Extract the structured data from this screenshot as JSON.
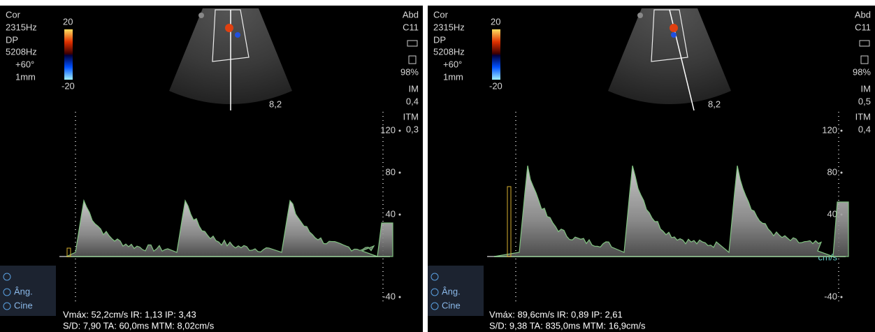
{
  "panels": [
    {
      "mode": "Cor",
      "freq": "2315Hz",
      "dp": "DP",
      "prf": "5208Hz",
      "angle": "+60°",
      "gate": "1mm",
      "color_max": "20",
      "color_min": "-20",
      "preset": "Abd",
      "probe": "C11",
      "power": "98%",
      "im_label": "IM",
      "im": "0,4",
      "itm_label": "ITM",
      "itm": "0,3",
      "depth": "8,2",
      "scale": [
        "120",
        "80",
        "40",
        "-40"
      ],
      "menu": [
        "Âng.",
        "Cine"
      ],
      "results": [
        "Vmáx: 52,2cm/s IR: 1,13 IP: 3,43",
        "S/D: 7,90 TA: 60,0ms MTM: 8,02cm/s"
      ]
    },
    {
      "mode": "Cor",
      "freq": "2315Hz",
      "dp": "DP",
      "prf": "5208Hz",
      "angle": "+60°",
      "gate": "1mm",
      "color_max": "20",
      "color_min": "-20",
      "preset": "Abd",
      "probe": "C11",
      "power": "98%",
      "im_label": "IM",
      "im": "0,5",
      "itm_label": "ITM",
      "itm": "0,4",
      "depth": "8,2",
      "scale": [
        "120",
        "80",
        "40",
        "-40"
      ],
      "menu": [
        "Âng.",
        "Cine"
      ],
      "unit": "cm/s",
      "results": [
        "Vmáx: 89,6cm/s IR: 0,89 IP: 2,61",
        "S/D: 9,38 TA: 835,0ms MTM: 16,9cm/s"
      ]
    }
  ]
}
